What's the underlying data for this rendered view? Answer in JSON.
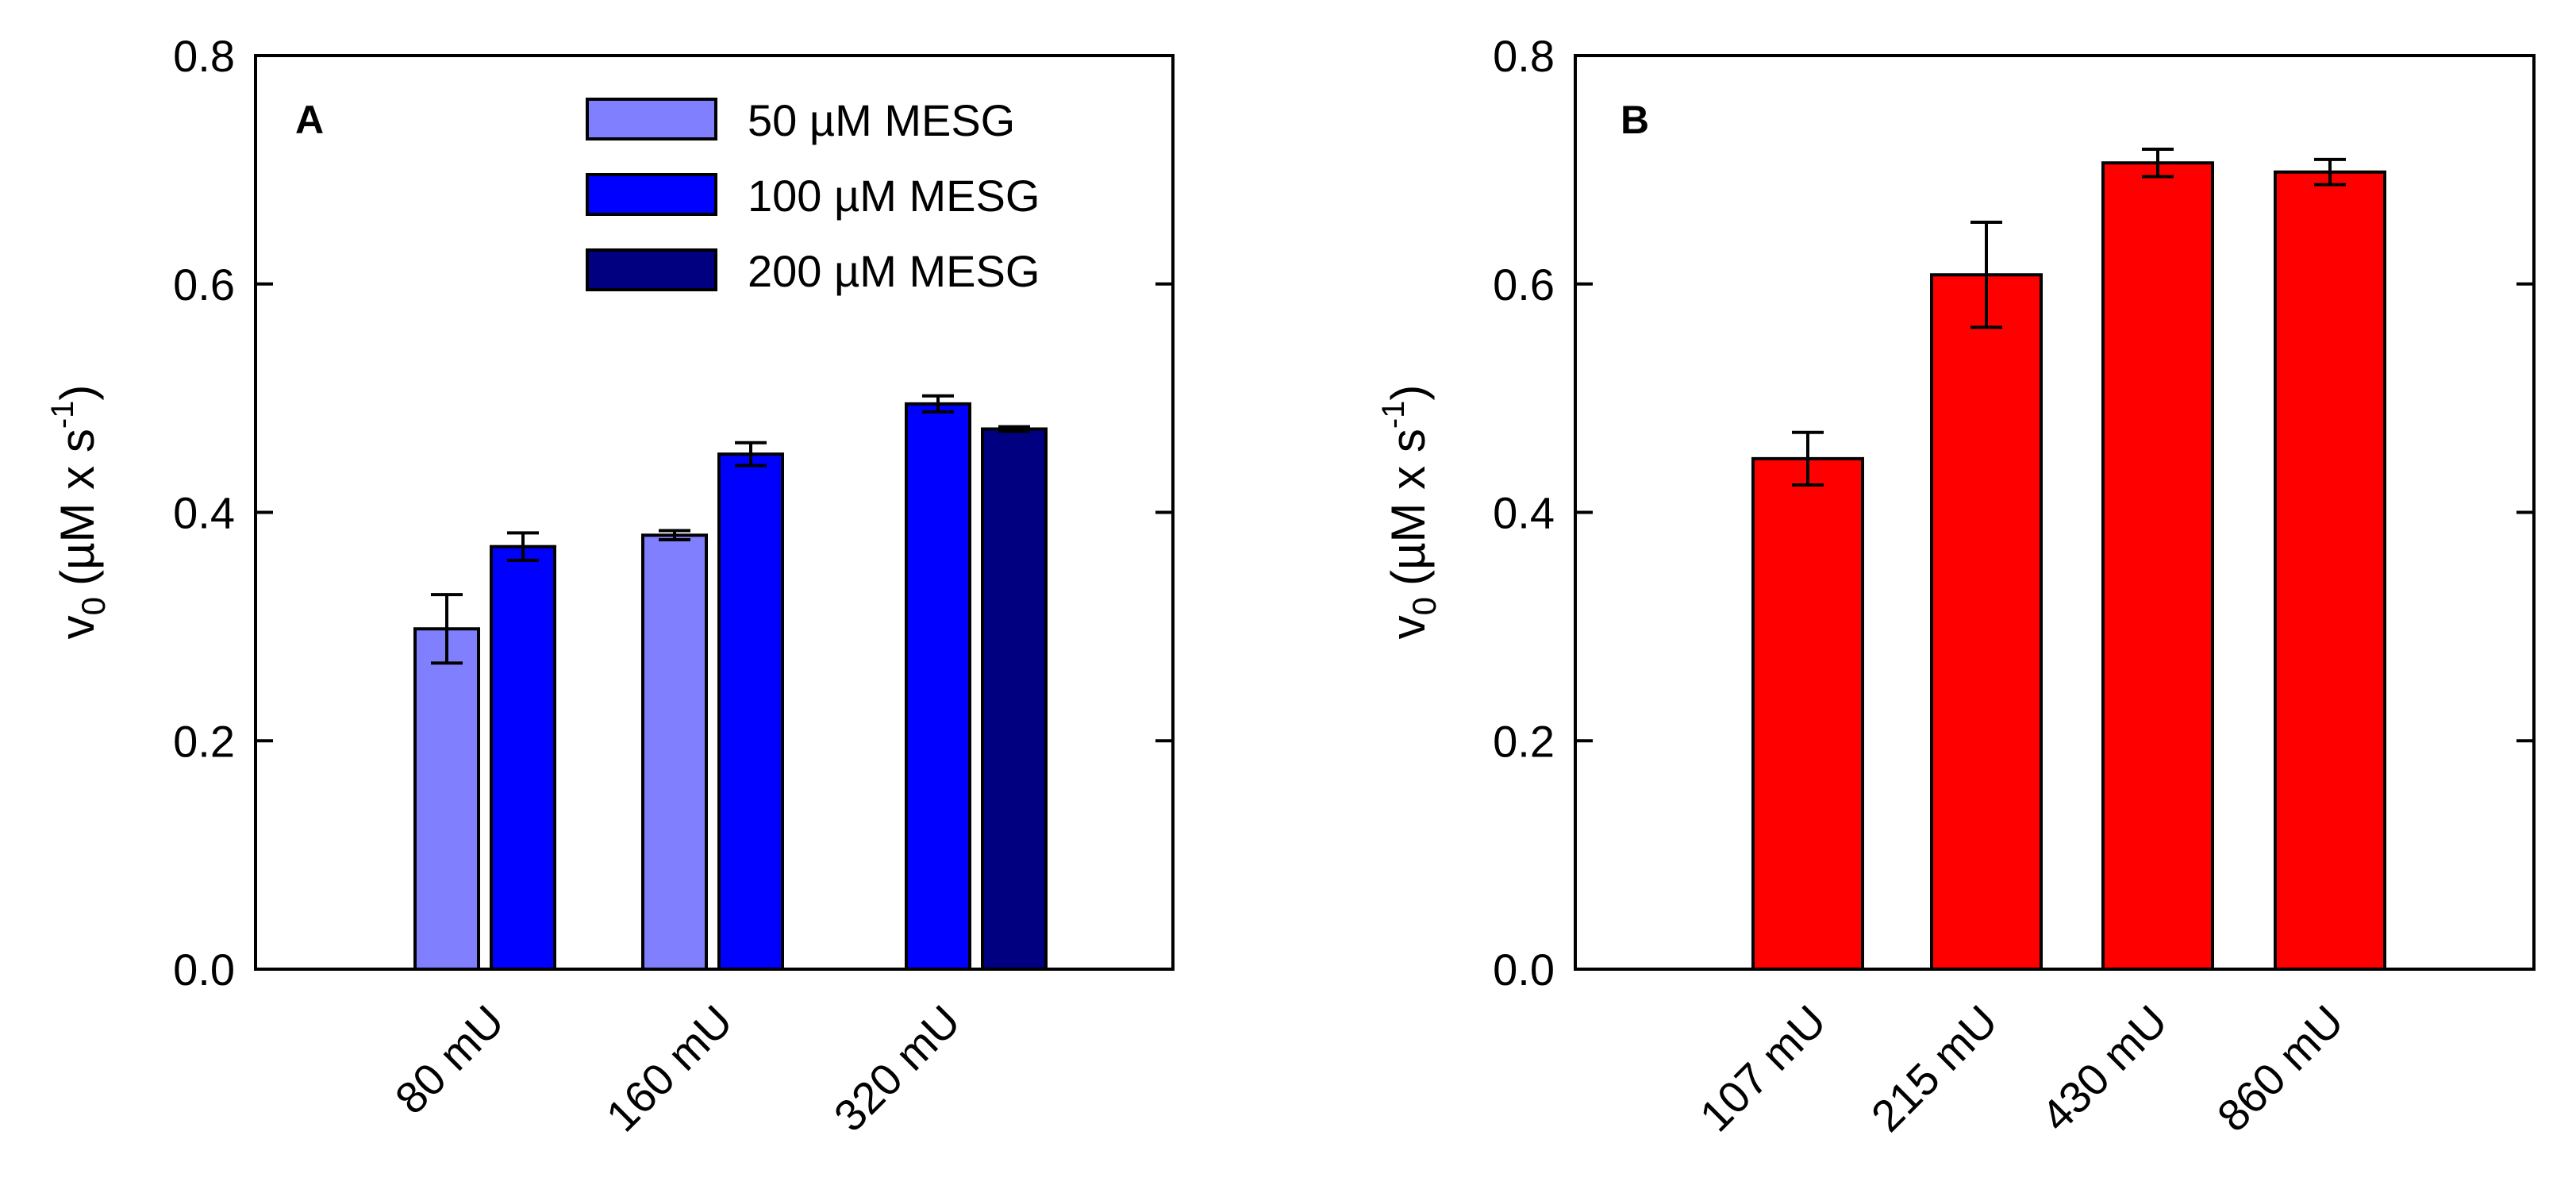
{
  "colors": {
    "mesg_50": "#8080FF",
    "mesg_100": "#0000FF",
    "mesg_200": "#000080",
    "panel_b": "#FF0000",
    "axis": "#000000"
  },
  "chart_data": [
    {
      "type": "bar",
      "panel": "A",
      "xlabel": "",
      "ylabel": {
        "base": "v",
        "sub": "0",
        "unit_prefix": "(µM x s",
        "unit_sup": "-1",
        "unit_suffix": ")"
      },
      "ylim": [
        0,
        0.8
      ],
      "yticks": [
        "0.0",
        "0.2",
        "0.4",
        "0.6",
        "0.8"
      ],
      "categories": [
        "80 mU",
        "160 mU",
        "320 mU"
      ],
      "series": [
        {
          "name": "50 µM MESG",
          "color_key": "mesg_50",
          "values": [
            0.298,
            0.38,
            null
          ],
          "errors": [
            0.03,
            0.004,
            null
          ]
        },
        {
          "name": "100 µM MESG",
          "color_key": "mesg_100",
          "values": [
            0.37,
            0.451,
            0.495
          ],
          "errors": [
            0.012,
            0.01,
            0.007
          ]
        },
        {
          "name": "200 µM MESG",
          "color_key": "mesg_200",
          "values": [
            null,
            null,
            0.473
          ],
          "errors": [
            null,
            null,
            0.002
          ]
        }
      ],
      "legend": {
        "position": "top-right"
      }
    },
    {
      "type": "bar",
      "panel": "B",
      "xlabel": "",
      "ylabel": {
        "base": "v",
        "sub": "0",
        "unit_prefix": "(µM x s",
        "unit_sup": "-1",
        "unit_suffix": ")"
      },
      "ylim": [
        0,
        0.8
      ],
      "yticks": [
        "0.0",
        "0.2",
        "0.4",
        "0.6",
        "0.8"
      ],
      "categories": [
        "107 mU",
        "215 mU",
        "430 mU",
        "860 mU"
      ],
      "series": [
        {
          "name": "",
          "color_key": "panel_b",
          "values": [
            0.447,
            0.608,
            0.706,
            0.698
          ],
          "errors": [
            0.023,
            0.046,
            0.012,
            0.011
          ]
        }
      ]
    }
  ]
}
